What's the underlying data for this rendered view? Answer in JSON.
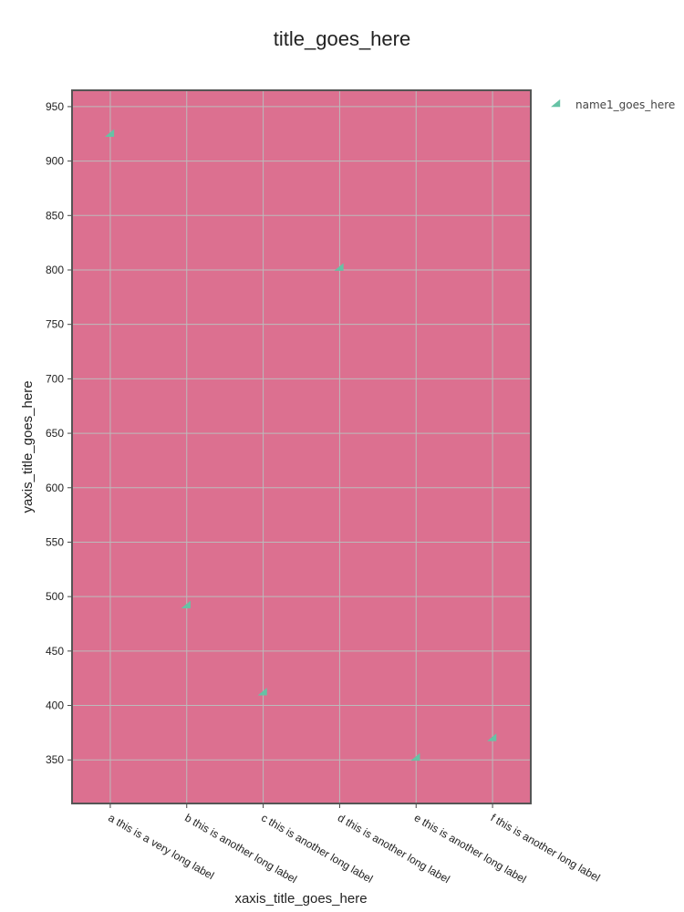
{
  "chart_data": {
    "type": "scatter",
    "title": "title_goes_here",
    "xlabel": "xaxis_title_goes_here",
    "ylabel": "yaxis_title_goes_here",
    "categories": [
      "a this is a very long label",
      "b this is another long label",
      "c this is another long label",
      "d this is another long label",
      "e this is another long label",
      "f this is another long label"
    ],
    "series": [
      {
        "name": "name1_goes_here",
        "values": [
          925,
          492,
          412,
          802,
          352,
          370
        ],
        "color": "#66c2a5",
        "marker": "triangle"
      }
    ],
    "ylim": [
      310,
      965
    ],
    "yticks": [
      350,
      400,
      450,
      500,
      550,
      600,
      650,
      700,
      750,
      800,
      850,
      900,
      950
    ],
    "grid": true,
    "legend": "top-right",
    "plot_background": "#dc7090",
    "plot_border_color": "#555555",
    "grid_color": "#bbbbbb"
  }
}
